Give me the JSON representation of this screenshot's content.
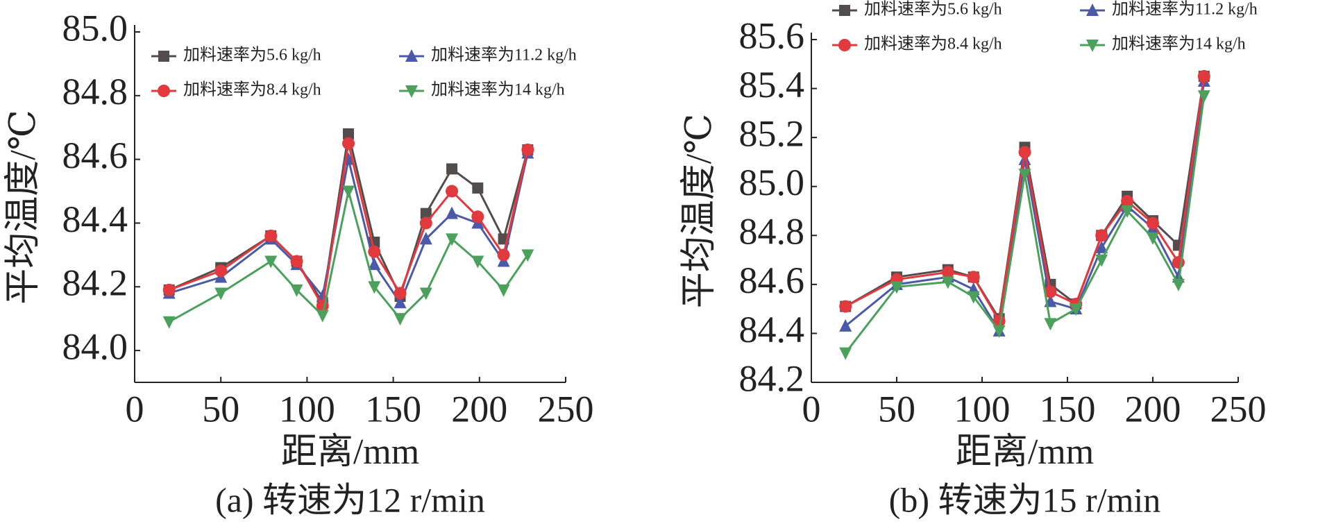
{
  "chart_data": [
    {
      "type": "line",
      "caption": "(a) 转速为12 r/min",
      "xlabel": "距离/mm",
      "ylabel": "平均温度/℃",
      "x": [
        20,
        50,
        79,
        94,
        109,
        124,
        139,
        154,
        169,
        184,
        199,
        214,
        228
      ],
      "xlim": [
        0,
        250
      ],
      "xticks": [
        0,
        50,
        100,
        150,
        200,
        250
      ],
      "ylim": [
        83.9,
        85.0
      ],
      "yticks": [
        {
          "value": 84.0,
          "label": "84.0"
        },
        84.2,
        84.4,
        84.6,
        84.8,
        {
          "value": 85.0,
          "label": "85.0"
        }
      ],
      "legend": "upper left",
      "series": [
        {
          "name": "加料速率为5.6 kg/h",
          "color": "#524c4c",
          "marker": "square",
          "values": [
            84.19,
            84.26,
            84.36,
            84.28,
            84.15,
            84.68,
            84.34,
            84.17,
            84.43,
            84.57,
            84.51,
            84.35,
            84.63
          ]
        },
        {
          "name": "加料速率为11.2 kg/h",
          "color": "#4a5aa8",
          "marker": "triangle-up",
          "values": [
            84.18,
            84.23,
            84.35,
            84.27,
            84.17,
            84.6,
            84.27,
            84.15,
            84.35,
            84.43,
            84.4,
            84.28,
            84.62
          ]
        },
        {
          "name": "加料速率为8.4 kg/h",
          "color": "#e0393e",
          "marker": "circle",
          "values": [
            84.19,
            84.25,
            84.36,
            84.28,
            84.14,
            84.65,
            84.31,
            84.18,
            84.4,
            84.5,
            84.42,
            84.3,
            84.63
          ]
        },
        {
          "name": "加料速率为14 kg/h",
          "color": "#4ba05c",
          "marker": "triangle-down",
          "values": [
            84.09,
            84.18,
            84.28,
            84.19,
            84.11,
            84.5,
            84.2,
            84.1,
            84.18,
            84.35,
            84.28,
            84.19,
            84.3
          ]
        }
      ]
    },
    {
      "type": "line",
      "caption": "(b) 转速为15 r/min",
      "xlabel": "距离/mm",
      "ylabel": "平均温度/℃",
      "x": [
        20,
        50,
        80,
        95,
        110,
        125,
        140,
        155,
        170,
        185,
        200,
        215,
        230
      ],
      "xlim": [
        0,
        250
      ],
      "xticks": [
        0,
        50,
        100,
        150,
        200,
        250
      ],
      "ylim": [
        84.2,
        85.6
      ],
      "yticks": [
        84.2,
        84.4,
        84.6,
        84.8,
        {
          "value": 85.0,
          "label": "85.0"
        },
        85.2,
        85.4,
        85.6
      ],
      "legend": "top",
      "series": [
        {
          "name": "加料速率为5.6 kg/h",
          "color": "#524c4c",
          "marker": "square",
          "values": [
            84.51,
            84.63,
            84.66,
            84.63,
            84.46,
            85.16,
            84.6,
            84.52,
            84.8,
            84.96,
            84.86,
            84.76,
            85.45
          ]
        },
        {
          "name": "加料速率为11.2 kg/h",
          "color": "#4a5aa8",
          "marker": "triangle-up",
          "values": [
            84.43,
            84.6,
            84.63,
            84.58,
            84.41,
            85.11,
            84.53,
            84.5,
            84.75,
            84.92,
            84.83,
            84.63,
            85.43
          ]
        },
        {
          "name": "加料速率为8.4 kg/h",
          "color": "#e0393e",
          "marker": "circle",
          "values": [
            84.51,
            84.62,
            84.65,
            84.63,
            84.45,
            85.14,
            84.57,
            84.52,
            84.8,
            84.94,
            84.85,
            84.69,
            85.45
          ]
        },
        {
          "name": "加料速率为14 kg/h",
          "color": "#4ba05c",
          "marker": "triangle-down",
          "values": [
            84.32,
            84.59,
            84.61,
            84.55,
            84.41,
            85.05,
            84.44,
            84.5,
            84.7,
            84.9,
            84.79,
            84.6,
            85.37
          ]
        }
      ]
    }
  ]
}
